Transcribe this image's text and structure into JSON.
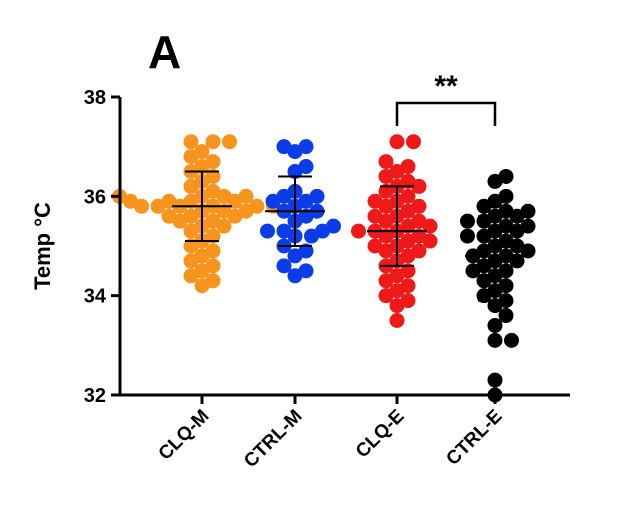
{
  "panel_label": "A",
  "chart_data": {
    "type": "scatter",
    "ylabel": "Temp °C",
    "ylim": [
      32,
      38
    ],
    "yticks": [
      32,
      34,
      36,
      38
    ],
    "categories": [
      "CLQ-M",
      "CTRL-M",
      "CLQ-E",
      "CTRL-E"
    ],
    "significance": {
      "from": "CLQ-E",
      "to": "CTRL-E",
      "label": "**"
    },
    "series": [
      {
        "category": "CLQ-M",
        "color": "#F7941D",
        "mean": 35.8,
        "sd_low": 35.1,
        "sd_high": 36.5,
        "values": [
          37.1,
          37.1,
          37.1,
          36.9,
          36.8,
          36.7,
          36.6,
          36.5,
          36.4,
          36.3,
          36.2,
          36.1,
          36.0,
          36.0,
          36.0,
          36.0,
          36.0,
          35.9,
          35.9,
          35.9,
          35.9,
          35.8,
          35.8,
          35.8,
          35.8,
          35.8,
          35.8,
          35.7,
          35.7,
          35.7,
          35.6,
          35.6,
          35.6,
          35.5,
          35.5,
          35.4,
          35.4,
          35.3,
          35.2,
          35.1,
          35.0,
          34.9,
          34.8,
          34.7,
          34.6,
          34.5,
          34.4,
          34.3,
          34.2
        ]
      },
      {
        "category": "CTRL-M",
        "color": "#0A3CE8",
        "mean": 35.7,
        "sd_low": 35.0,
        "sd_high": 36.4,
        "values": [
          37.0,
          37.0,
          36.9,
          36.6,
          36.5,
          36.1,
          36.0,
          36.0,
          35.9,
          35.9,
          35.8,
          35.7,
          35.7,
          35.6,
          35.5,
          35.4,
          35.3,
          35.3,
          35.3,
          35.2,
          35.2,
          35.0,
          34.9,
          34.8,
          34.6,
          34.5,
          34.4
        ]
      },
      {
        "category": "CLQ-E",
        "color": "#F01919",
        "mean": 35.3,
        "sd_low": 34.6,
        "sd_high": 36.2,
        "values": [
          37.1,
          37.1,
          36.7,
          36.6,
          36.5,
          36.4,
          36.3,
          36.2,
          36.2,
          36.1,
          36.0,
          35.9,
          35.9,
          35.8,
          35.8,
          35.7,
          35.6,
          35.6,
          35.5,
          35.5,
          35.4,
          35.4,
          35.3,
          35.3,
          35.3,
          35.2,
          35.2,
          35.1,
          35.1,
          35.0,
          35.0,
          34.9,
          34.9,
          34.8,
          34.7,
          34.6,
          34.5,
          34.4,
          34.3,
          34.2,
          34.1,
          34.0,
          33.9,
          33.8,
          33.5
        ]
      },
      {
        "category": "CTRL-E",
        "color": "#000000",
        "mean": 34.8,
        "sd_low": 33.9,
        "sd_high": 35.6,
        "values": [
          36.4,
          36.3,
          36.0,
          35.9,
          35.8,
          35.7,
          35.7,
          35.6,
          35.6,
          35.5,
          35.5,
          35.4,
          35.4,
          35.3,
          35.3,
          35.2,
          35.2,
          35.1,
          35.0,
          35.0,
          34.9,
          34.9,
          34.8,
          34.8,
          34.7,
          34.7,
          34.6,
          34.5,
          34.5,
          34.4,
          34.3,
          34.2,
          34.1,
          34.0,
          33.9,
          33.8,
          33.6,
          33.4,
          33.1,
          33.1,
          32.3,
          32.0
        ]
      }
    ]
  }
}
